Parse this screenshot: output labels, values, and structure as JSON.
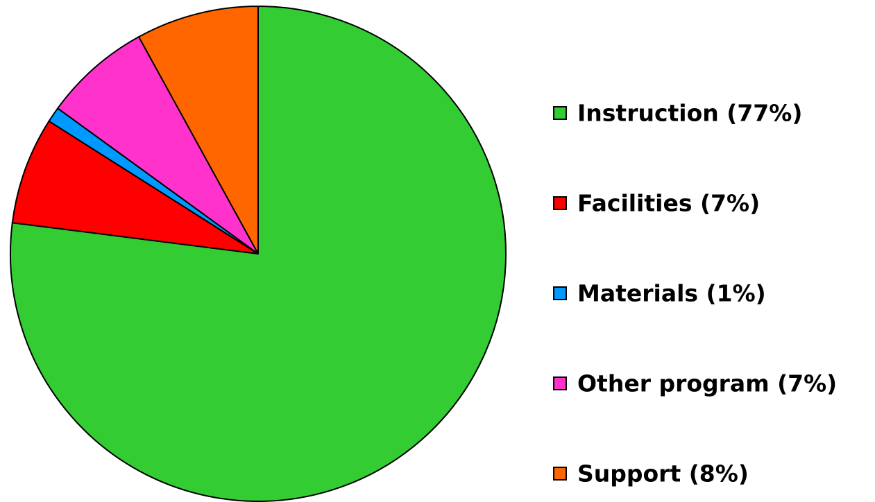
{
  "chart_data": {
    "type": "pie",
    "categories": [
      "Instruction (77%)",
      "Facilities (7%)",
      "Materials (1%)",
      "Other program (7%)",
      "Support (8%)"
    ],
    "values": [
      77,
      7,
      1,
      7,
      8
    ],
    "colors": [
      "#33cc33",
      "#ff0000",
      "#0099ff",
      "#ff33cc",
      "#ff6600"
    ],
    "legend": "right"
  }
}
